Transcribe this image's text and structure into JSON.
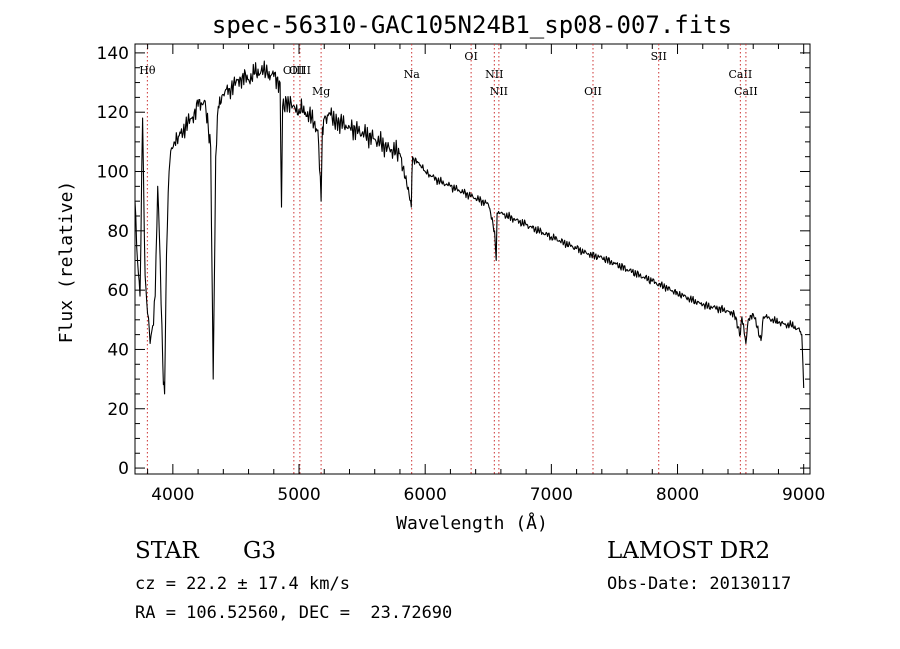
{
  "chart_data": {
    "type": "line",
    "title": "spec-56310-GAC105N24B1_sp08-007.fits",
    "xlabel": "Wavelength (Å)",
    "ylabel": "Flux (relative)",
    "xlim": [
      3700,
      9050
    ],
    "ylim": [
      -2,
      143
    ],
    "x_ticks": [
      4000,
      5000,
      6000,
      7000,
      8000,
      9000
    ],
    "y_ticks": [
      0,
      20,
      40,
      60,
      80,
      100,
      120,
      140
    ],
    "x_tick_labels": [
      "4000",
      "5000",
      "6000",
      "7000",
      "8000",
      "9000"
    ],
    "y_tick_labels": [
      "0",
      "20",
      "40",
      "60",
      "80",
      "100",
      "120",
      "140"
    ],
    "series": [
      {
        "name": "spectrum",
        "x": [
          3700,
          3720,
          3740,
          3760,
          3780,
          3800,
          3820,
          3840,
          3860,
          3880,
          3900,
          3920,
          3935,
          3950,
          3970,
          3990,
          4010,
          4050,
          4100,
          4150,
          4200,
          4250,
          4300,
          4320,
          4340,
          4360,
          4400,
          4450,
          4500,
          4550,
          4600,
          4650,
          4700,
          4750,
          4800,
          4850,
          4861,
          4870,
          4900,
          4950,
          5000,
          5050,
          5100,
          5150,
          5175,
          5185,
          5200,
          5250,
          5300,
          5400,
          5500,
          5600,
          5700,
          5800,
          5890,
          5900,
          5910,
          5950,
          6000,
          6100,
          6200,
          6300,
          6400,
          6500,
          6550,
          6563,
          6570,
          6600,
          6700,
          6800,
          6900,
          7000,
          7100,
          7200,
          7300,
          7400,
          7500,
          7600,
          7700,
          7800,
          7900,
          8000,
          8100,
          8200,
          8300,
          8400,
          8450,
          8498,
          8510,
          8542,
          8560,
          8600,
          8662,
          8680,
          8700,
          8800,
          8900,
          8950,
          8970,
          8985,
          9000
        ],
        "y": [
          90,
          70,
          58,
          118,
          65,
          52,
          42,
          48,
          58,
          95,
          70,
          35,
          25,
          72,
          100,
          108,
          110,
          112,
          115,
          118,
          122,
          124,
          108,
          30,
          105,
          122,
          126,
          128,
          130,
          132,
          131,
          133,
          134,
          133,
          132,
          130,
          88,
          122,
          124,
          122,
          121,
          120,
          118,
          114,
          90,
          115,
          118,
          119,
          117,
          115,
          113,
          111,
          108,
          106,
          88,
          105,
          104,
          103,
          100,
          97,
          95,
          93,
          91,
          89,
          80,
          70,
          86,
          86,
          84,
          82,
          80,
          78,
          76,
          74,
          72,
          71,
          69,
          67,
          65,
          63,
          61,
          59,
          57,
          55,
          54,
          53,
          52,
          45,
          51,
          42,
          50,
          52,
          43,
          51,
          51,
          49,
          48,
          47,
          46,
          45,
          27
        ]
      }
    ],
    "line_markers": [
      {
        "label": "Hθ",
        "x": 3798,
        "position": "top"
      },
      {
        "label": "OIII",
        "x": 4959,
        "position": "top"
      },
      {
        "label": "OIII",
        "x": 5007,
        "position": "top"
      },
      {
        "label": "Mg",
        "x": 5175,
        "position": "top"
      },
      {
        "label": "Na",
        "x": 5893,
        "position": "top"
      },
      {
        "label": "OI",
        "x": 6364,
        "position": "top"
      },
      {
        "label": "NII",
        "x": 6548,
        "position": "top"
      },
      {
        "label": "NII",
        "x": 6584,
        "position": "top"
      },
      {
        "label": "OII",
        "x": 7330,
        "position": "top"
      },
      {
        "label": "SII",
        "x": 7851,
        "position": "top"
      },
      {
        "label": "CaII",
        "x": 8498,
        "position": "top"
      },
      {
        "label": "CaII",
        "x": 8542,
        "position": "top"
      }
    ]
  },
  "info": {
    "object_type": "STAR",
    "subclass": "G3",
    "redshift_line": "cz = 22.2 ± 17.4 km/s",
    "coords_line": "RA = 106.52560, DEC =  23.72690",
    "survey": "LAMOST DR2",
    "obs_date_line": "Obs-Date: 20130117"
  },
  "colors": {
    "line": "#000000",
    "marker": "#cc3333",
    "background": "#ffffff"
  }
}
